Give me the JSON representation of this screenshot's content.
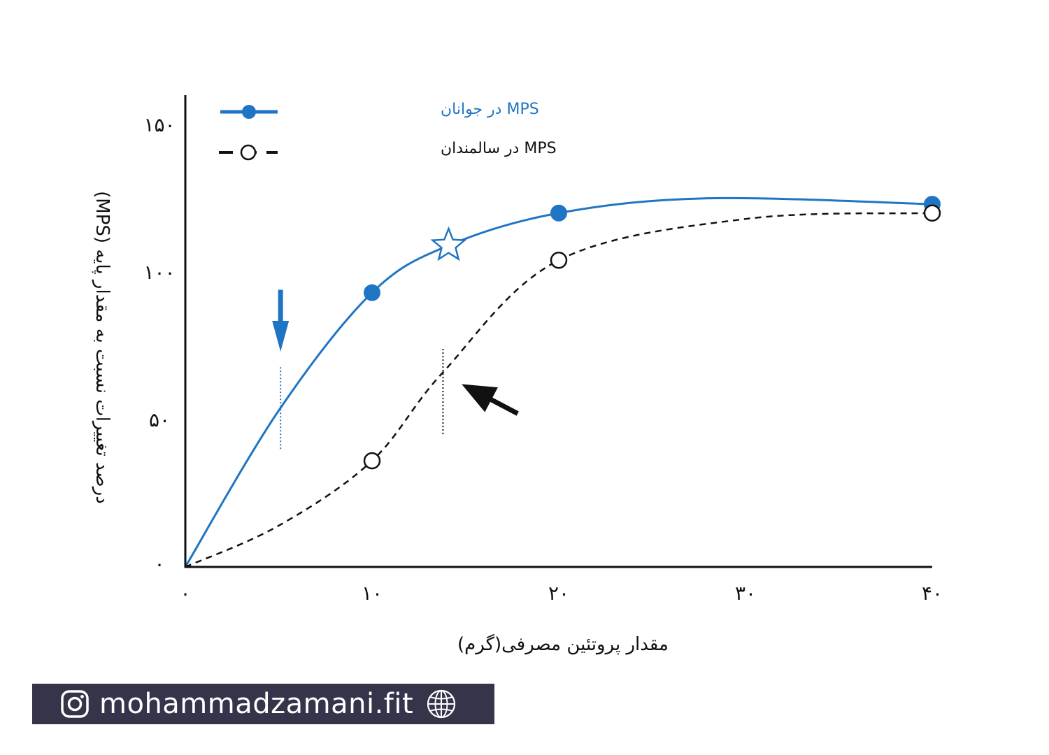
{
  "chart_data": {
    "type": "line",
    "xlabel": "مقدار پروتئین مصرفی(گرم)",
    "ylabel": "درصد تغییرات نسبت به مقدار پایه (MPS)",
    "xlim": [
      0,
      40
    ],
    "ylim": [
      0,
      160
    ],
    "x_ticks": [
      0,
      10,
      20,
      30,
      40
    ],
    "x_tick_labels": [
      "۰",
      "۱۰",
      "۲۰",
      "۳۰",
      "۴۰"
    ],
    "y_ticks": [
      0,
      50,
      100,
      150
    ],
    "y_tick_labels": [
      "۰",
      "۵۰",
      "۱۰۰",
      "۱۵۰"
    ],
    "grid": false,
    "legend_position": "top-left",
    "series": [
      {
        "name": "MPS در جوانان",
        "color": "#1f75c4",
        "line_style": "solid",
        "marker": "filled-circle",
        "x": [
          10,
          20,
          40
        ],
        "y": [
          93,
          120,
          123
        ],
        "curve": [
          [
            0,
            0
          ],
          [
            5,
            53
          ],
          [
            10,
            93
          ],
          [
            14.1,
            109
          ],
          [
            20,
            120
          ],
          [
            28,
            125
          ],
          [
            40,
            123
          ]
        ]
      },
      {
        "name": "MPS در سالمندان",
        "color": "#111111",
        "line_style": "dashed",
        "marker": "open-circle",
        "x": [
          10,
          20,
          40
        ],
        "y": [
          36,
          104,
          120
        ],
        "curve": [
          [
            0,
            0
          ],
          [
            5,
            14
          ],
          [
            10,
            36
          ],
          [
            13.8,
            66
          ],
          [
            20,
            104
          ],
          [
            30,
            118
          ],
          [
            40,
            120
          ]
        ]
      }
    ],
    "annotations": [
      {
        "type": "star",
        "x": 14.1,
        "y": 109,
        "color": "#1f75c4"
      },
      {
        "type": "vertical-marker",
        "x": 5.1,
        "y_from": 40,
        "y_to": 68,
        "color": "#1f75c4"
      },
      {
        "type": "arrow-down",
        "x": 5.1,
        "y_from": 94,
        "y_to": 73,
        "color": "#1f75c4"
      },
      {
        "type": "vertical-marker",
        "x": 13.8,
        "y_from": 45,
        "y_to": 74,
        "color": "#111111"
      },
      {
        "type": "arrow",
        "from": [
          17.8,
          52
        ],
        "to": [
          14.8,
          62
        ],
        "color": "#111111"
      }
    ]
  },
  "banner": {
    "icon_left": "instagram-icon",
    "text": "mohammadzamani.fit",
    "icon_right": "globe-icon",
    "background": "#34344a"
  }
}
